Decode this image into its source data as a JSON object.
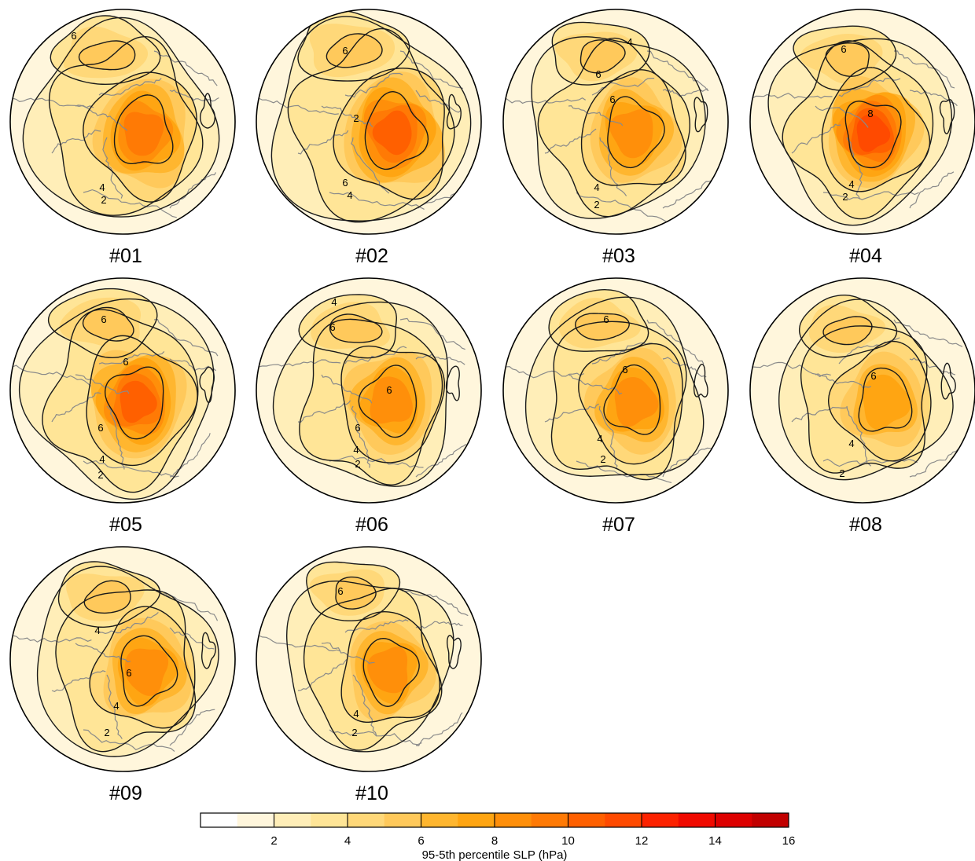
{
  "panels": [
    {
      "label": "#01",
      "contour_labels": [
        "6",
        "4",
        "2"
      ]
    },
    {
      "label": "#02",
      "contour_labels": [
        "6",
        "6",
        "4",
        "2"
      ]
    },
    {
      "label": "#03",
      "contour_labels": [
        "4",
        "6",
        "6",
        "4",
        "2"
      ]
    },
    {
      "label": "#04",
      "contour_labels": [
        "6",
        "8",
        "4",
        "2"
      ]
    },
    {
      "label": "#05",
      "contour_labels": [
        "6",
        "6",
        "6",
        "4",
        "2"
      ]
    },
    {
      "label": "#06",
      "contour_labels": [
        "4",
        "6",
        "6",
        "6",
        "4",
        "2"
      ]
    },
    {
      "label": "#07",
      "contour_labels": [
        "6",
        "6",
        "4",
        "2"
      ]
    },
    {
      "label": "#08",
      "contour_labels": [
        "6",
        "4",
        "2"
      ]
    },
    {
      "label": "#09",
      "contour_labels": [
        "4",
        "6",
        "4",
        "2"
      ]
    },
    {
      "label": "#10",
      "contour_labels": [
        "6",
        "4",
        "2"
      ]
    }
  ],
  "colorbar": {
    "title": "95-5th percentile SLP (hPa)",
    "min": 0,
    "max": 16,
    "step": 1,
    "tick_labels": [
      "2",
      "4",
      "6",
      "8",
      "10",
      "12",
      "14",
      "16"
    ],
    "colors": [
      "#ffffff",
      "#fff6dc",
      "#ffeeb8",
      "#ffe597",
      "#ffd879",
      "#ffc95b",
      "#ffb62f",
      "#ffa512",
      "#ff8f0a",
      "#ff7a05",
      "#ff6000",
      "#ff4a00",
      "#fc2200",
      "#f00a00",
      "#dd0000",
      "#c10000"
    ]
  },
  "styles": {
    "coast": "#8a8a8a",
    "contour": "#1a1a1a",
    "outline": "#000000"
  }
}
